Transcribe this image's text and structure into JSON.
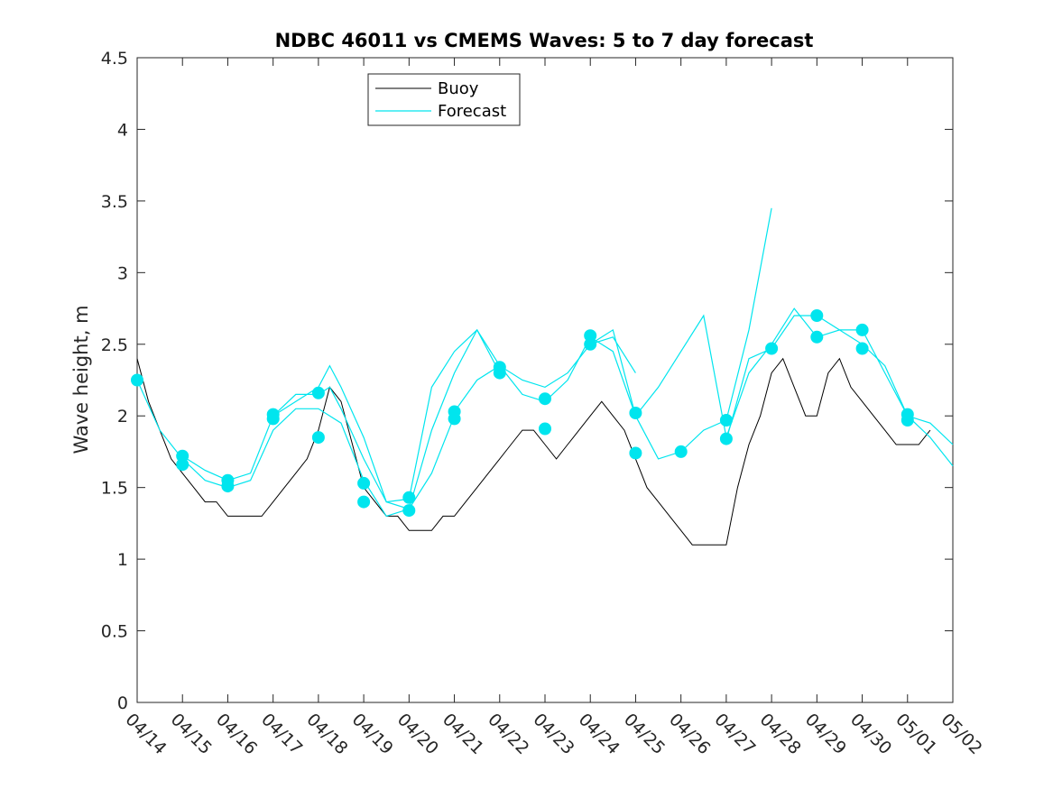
{
  "chart_data": {
    "type": "line",
    "title": "NDBC 46011 vs CMEMS Waves: 5 to 7 day forecast",
    "xlabel": "",
    "ylabel": "Wave height, m",
    "xlim": [
      "04/14",
      "05/02"
    ],
    "ylim": [
      0,
      4.5
    ],
    "x_ticks": [
      "04/14",
      "04/15",
      "04/16",
      "04/17",
      "04/18",
      "04/19",
      "04/20",
      "04/21",
      "04/22",
      "04/23",
      "04/24",
      "04/25",
      "04/26",
      "04/27",
      "04/28",
      "04/29",
      "04/30",
      "05/01",
      "05/02"
    ],
    "y_ticks": [
      "0",
      "0.5",
      "1",
      "1.5",
      "2",
      "2.5",
      "3",
      "3.5",
      "4",
      "4.5"
    ],
    "grid": false,
    "legend_position": "top-left",
    "series": [
      {
        "name": "Buoy",
        "color": "#000000",
        "x": [
          "04/14 00:00",
          "04/14 06:00",
          "04/14 12:00",
          "04/14 18:00",
          "04/15 00:00",
          "04/15 06:00",
          "04/15 12:00",
          "04/15 18:00",
          "04/16 00:00",
          "04/16 06:00",
          "04/16 12:00",
          "04/16 18:00",
          "04/17 00:00",
          "04/17 06:00",
          "04/17 12:00",
          "04/17 18:00",
          "04/18 00:00",
          "04/18 06:00",
          "04/18 12:00",
          "04/18 18:00",
          "04/19 00:00",
          "04/19 06:00",
          "04/19 12:00",
          "04/19 18:00",
          "04/20 00:00",
          "04/20 06:00",
          "04/20 12:00",
          "04/20 18:00",
          "04/21 00:00",
          "04/21 06:00",
          "04/21 12:00",
          "04/21 18:00",
          "04/22 00:00",
          "04/22 06:00",
          "04/22 12:00",
          "04/22 18:00",
          "04/23 00:00",
          "04/23 06:00",
          "04/23 12:00",
          "04/23 18:00",
          "04/24 00:00",
          "04/24 06:00",
          "04/24 12:00",
          "04/24 18:00",
          "04/25 00:00",
          "04/25 06:00",
          "04/25 12:00",
          "04/25 18:00",
          "04/26 00:00",
          "04/26 06:00",
          "04/26 12:00",
          "04/26 18:00",
          "04/27 00:00",
          "04/27 06:00",
          "04/27 12:00",
          "04/27 18:00",
          "04/28 00:00",
          "04/28 06:00",
          "04/28 12:00",
          "04/28 18:00",
          "04/29 00:00",
          "04/29 06:00",
          "04/29 12:00",
          "04/29 18:00",
          "04/30 00:00",
          "04/30 06:00",
          "04/30 12:00",
          "04/30 18:00",
          "05/01 00:00",
          "05/01 06:00",
          "05/01 12:00"
        ],
        "values": [
          2.4,
          2.1,
          1.9,
          1.7,
          1.6,
          1.5,
          1.4,
          1.4,
          1.3,
          1.3,
          1.3,
          1.3,
          1.4,
          1.5,
          1.6,
          1.7,
          1.9,
          2.2,
          2.1,
          1.8,
          1.5,
          1.4,
          1.3,
          1.3,
          1.2,
          1.2,
          1.2,
          1.3,
          1.3,
          1.4,
          1.5,
          1.6,
          1.7,
          1.8,
          1.9,
          1.9,
          1.8,
          1.7,
          1.8,
          1.9,
          2.0,
          2.1,
          2.0,
          1.9,
          1.7,
          1.5,
          1.4,
          1.3,
          1.2,
          1.1,
          1.1,
          1.1,
          1.1,
          1.5,
          1.8,
          2.0,
          2.3,
          2.4,
          2.2,
          2.0,
          2.0,
          2.3,
          2.4,
          2.2,
          2.1,
          2.0,
          1.9,
          1.8,
          1.8,
          1.8,
          1.9
        ]
      },
      {
        "name": "Forecast",
        "color": "#00e5ee",
        "segments": [
          {
            "x": [
              "04/14 00:00",
              "04/14 12:00",
              "04/15 00:00",
              "04/15 12:00",
              "04/16 00:00",
              "04/16 12:00",
              "04/17 00:00",
              "04/17 12:00",
              "04/18 00:00",
              "04/18 12:00",
              "04/19 00:00",
              "04/19 12:00",
              "04/20 00:00",
              "04/20 12:00",
              "04/21 00:00"
            ],
            "values": [
              2.25,
              1.9,
              1.7,
              1.55,
              1.5,
              1.55,
              1.9,
              2.05,
              2.05,
              1.95,
              1.55,
              1.3,
              1.35,
              1.6,
              2.0
            ]
          },
          {
            "x": [
              "04/15 00:00",
              "04/15 12:00",
              "04/16 00:00",
              "04/16 12:00",
              "04/17 00:00",
              "04/17 12:00",
              "04/18 00:00",
              "04/18 06:00",
              "04/18 12:00",
              "04/19 00:00",
              "04/19 12:00",
              "04/20 00:00",
              "04/20 12:00",
              "04/21 00:00",
              "04/21 12:00",
              "04/22 00:00"
            ],
            "values": [
              1.72,
              1.62,
              1.55,
              1.6,
              2.0,
              2.15,
              2.15,
              2.2,
              2.05,
              1.7,
              1.4,
              1.42,
              2.2,
              2.45,
              2.6,
              2.3
            ]
          },
          {
            "x": [
              "04/17 00:00",
              "04/17 12:00",
              "04/18 00:00",
              "04/18 06:00",
              "04/18 12:00",
              "04/19 00:00",
              "04/19 12:00",
              "04/20 00:00",
              "04/20 12:00",
              "04/21 00:00",
              "04/21 12:00",
              "04/22 00:00",
              "04/22 12:00",
              "04/23 00:00",
              "04/23 12:00",
              "04/24 00:00",
              "04/24 12:00",
              "04/25 00:00"
            ],
            "values": [
              2.0,
              2.1,
              2.2,
              2.35,
              2.2,
              1.85,
              1.4,
              1.35,
              1.9,
              2.3,
              2.6,
              2.35,
              2.25,
              2.2,
              2.3,
              2.5,
              2.55,
              2.3
            ]
          },
          {
            "x": [
              "04/21 00:00",
              "04/21 12:00",
              "04/22 00:00",
              "04/22 12:00",
              "04/23 00:00",
              "04/23 12:00",
              "04/24 00:00",
              "04/24 12:00",
              "04/25 00:00",
              "04/25 12:00",
              "04/26 00:00",
              "04/26 12:00",
              "04/27 00:00",
              "04/27 12:00",
              "04/28 00:00"
            ],
            "values": [
              2.03,
              2.25,
              2.35,
              2.15,
              2.1,
              2.25,
              2.55,
              2.45,
              2.0,
              1.7,
              1.75,
              1.9,
              1.97,
              2.6,
              3.45
            ]
          },
          {
            "x": [
              "04/24 00:00",
              "04/24 12:00",
              "04/25 00:00",
              "04/25 12:00",
              "04/26 00:00",
              "04/26 12:00",
              "04/27 00:00",
              "04/27 12:00",
              "04/28 00:00",
              "04/28 12:00",
              "04/29 00:00",
              "04/29 12:00",
              "04/30 00:00",
              "04/30 12:00",
              "05/01 00:00",
              "05/01 12:00",
              "05/02 00:00"
            ],
            "values": [
              2.5,
              2.6,
              2.0,
              2.2,
              2.45,
              2.7,
              1.85,
              2.3,
              2.5,
              2.75,
              2.55,
              2.6,
              2.5,
              2.35,
              2.0,
              1.85,
              1.65
            ]
          },
          {
            "x": [
              "04/27 00:00",
              "04/27 12:00",
              "04/28 00:00",
              "04/28 12:00",
              "04/29 00:00",
              "04/29 12:00",
              "04/30 00:00",
              "04/30 12:00",
              "05/01 00:00",
              "05/01 12:00",
              "05/02 00:00"
            ],
            "values": [
              1.83,
              2.4,
              2.47,
              2.7,
              2.7,
              2.6,
              2.6,
              2.3,
              2.0,
              1.95,
              1.8
            ]
          }
        ],
        "markers": [
          {
            "x": "04/14 00:00",
            "value": 2.25
          },
          {
            "x": "04/15 00:00",
            "value": 1.72
          },
          {
            "x": "04/15 00:00",
            "value": 1.66
          },
          {
            "x": "04/16 00:00",
            "value": 1.55
          },
          {
            "x": "04/16 00:00",
            "value": 1.51
          },
          {
            "x": "04/17 00:00",
            "value": 2.01
          },
          {
            "x": "04/17 00:00",
            "value": 1.98
          },
          {
            "x": "04/18 00:00",
            "value": 2.16
          },
          {
            "x": "04/18 00:00",
            "value": 1.85
          },
          {
            "x": "04/19 00:00",
            "value": 1.53
          },
          {
            "x": "04/19 00:00",
            "value": 1.4
          },
          {
            "x": "04/20 00:00",
            "value": 1.43
          },
          {
            "x": "04/20 00:00",
            "value": 1.34
          },
          {
            "x": "04/21 00:00",
            "value": 2.03
          },
          {
            "x": "04/21 00:00",
            "value": 1.98
          },
          {
            "x": "04/22 00:00",
            "value": 2.34
          },
          {
            "x": "04/22 00:00",
            "value": 2.3
          },
          {
            "x": "04/23 00:00",
            "value": 2.12
          },
          {
            "x": "04/23 00:00",
            "value": 1.91
          },
          {
            "x": "04/24 00:00",
            "value": 2.56
          },
          {
            "x": "04/24 00:00",
            "value": 2.5
          },
          {
            "x": "04/25 00:00",
            "value": 2.02
          },
          {
            "x": "04/25 00:00",
            "value": 1.74
          },
          {
            "x": "04/26 00:00",
            "value": 1.75
          },
          {
            "x": "04/27 00:00",
            "value": 1.97
          },
          {
            "x": "04/27 00:00",
            "value": 1.84
          },
          {
            "x": "04/28 00:00",
            "value": 2.47
          },
          {
            "x": "04/29 00:00",
            "value": 2.7
          },
          {
            "x": "04/29 00:00",
            "value": 2.55
          },
          {
            "x": "04/30 00:00",
            "value": 2.6
          },
          {
            "x": "04/30 00:00",
            "value": 2.47
          },
          {
            "x": "05/01 00:00",
            "value": 2.01
          },
          {
            "x": "05/01 00:00",
            "value": 1.97
          }
        ]
      }
    ]
  }
}
